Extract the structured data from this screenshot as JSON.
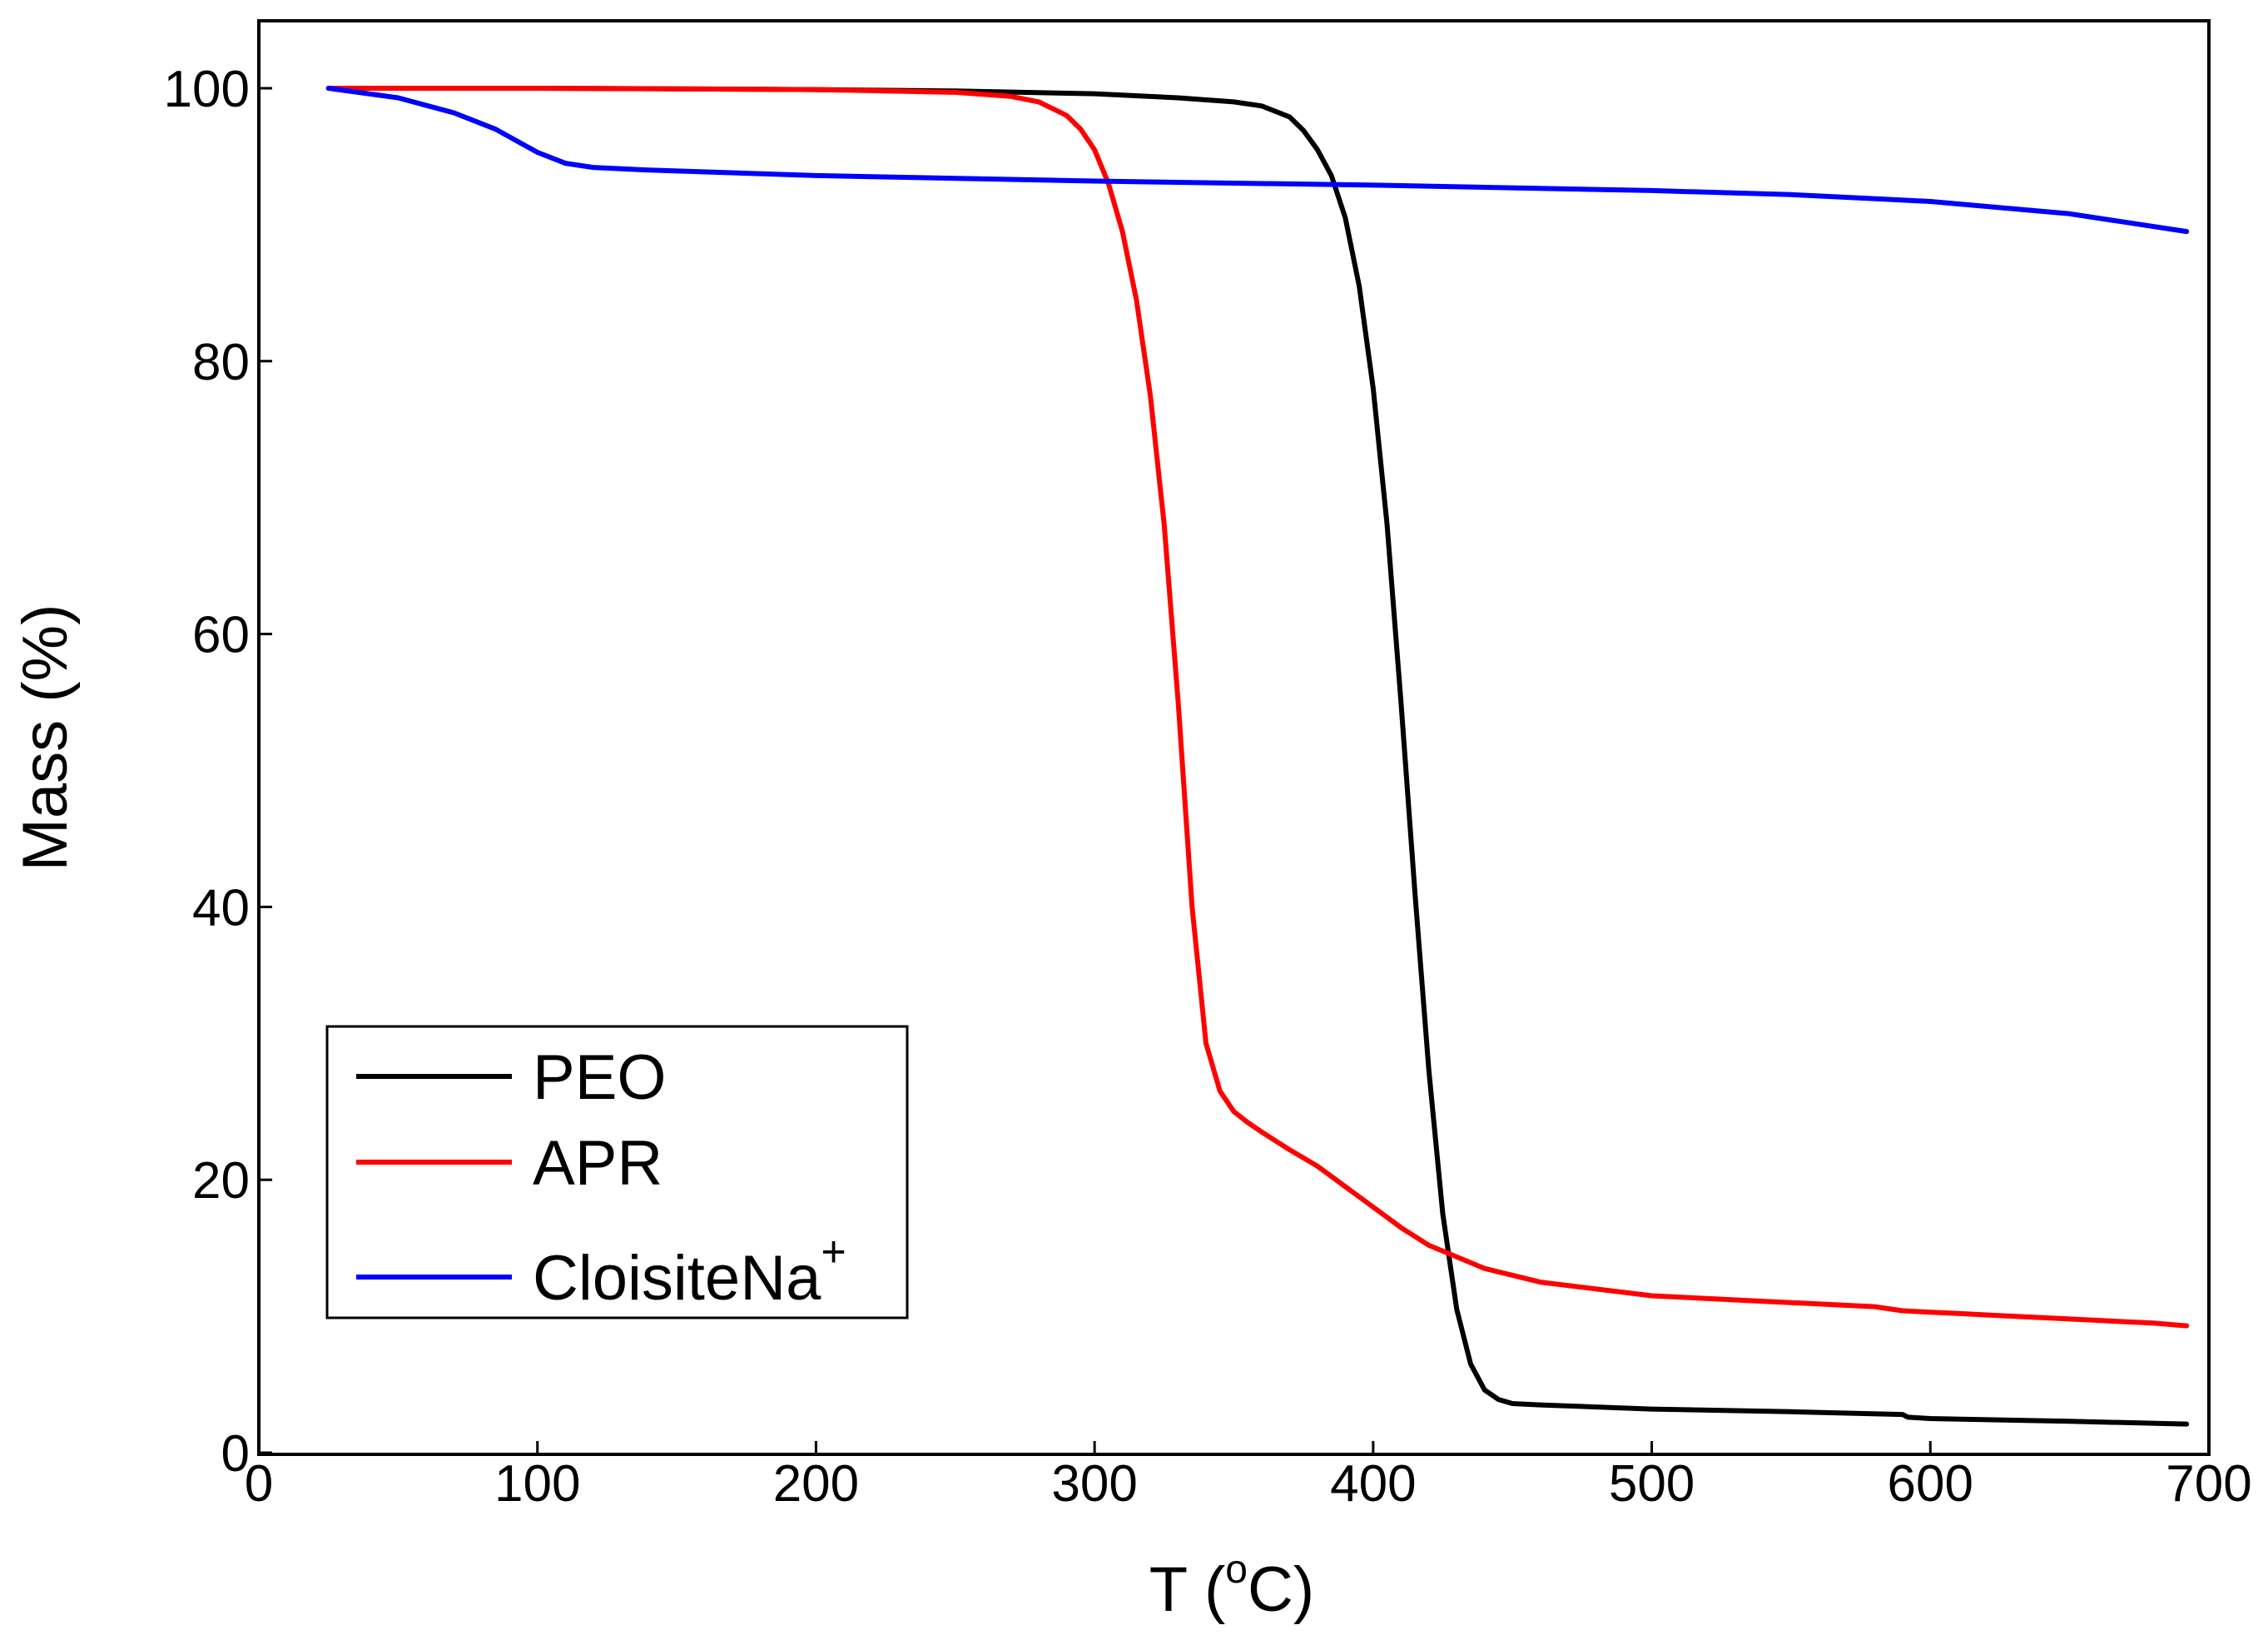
{
  "chart_data": {
    "type": "line",
    "title": "",
    "xlabel": "T (",
    "xlabel_sup": "o",
    "xlabel_tail": "C)",
    "ylabel": "Mass (%)",
    "xlim": [
      0,
      700
    ],
    "ylim": [
      0,
      100
    ],
    "x_ticks": [
      0,
      100,
      200,
      300,
      400,
      500,
      600,
      700
    ],
    "y_ticks": [
      0,
      20,
      40,
      60,
      80,
      100
    ],
    "x_tick_labels": [
      "0",
      "100",
      "200",
      "300",
      "400",
      "500",
      "600",
      "700"
    ],
    "y_tick_labels": [
      "0",
      "20",
      "40",
      "60",
      "80",
      "100"
    ],
    "grid": false,
    "legend_position": "bottom-left",
    "series": [
      {
        "name": "PEO",
        "name_sup": "",
        "color": "#000000",
        "x": [
          25,
          100,
          200,
          250,
          300,
          330,
          350,
          360,
          370,
          375,
          380,
          385,
          390,
          395,
          400,
          405,
          410,
          415,
          420,
          425,
          430,
          435,
          440,
          445,
          450,
          460,
          500,
          550,
          590,
          592,
          600,
          650,
          692
        ],
        "y": [
          100,
          100,
          99.9,
          99.8,
          99.6,
          99.3,
          99.0,
          98.7,
          97.9,
          96.9,
          95.5,
          93.6,
          90.5,
          85.5,
          78.0,
          68.0,
          55.0,
          41.0,
          28.0,
          17.5,
          10.5,
          6.5,
          4.6,
          3.9,
          3.6,
          3.5,
          3.2,
          3.0,
          2.8,
          2.6,
          2.5,
          2.3,
          2.1
        ]
      },
      {
        "name": "APR",
        "name_sup": "",
        "color": "#ff0000",
        "x": [
          25,
          100,
          200,
          250,
          270,
          280,
          290,
          295,
          300,
          305,
          310,
          315,
          320,
          325,
          330,
          335,
          340,
          345,
          350,
          355,
          360,
          370,
          380,
          390,
          400,
          410,
          420,
          440,
          460,
          500,
          550,
          580,
          590,
          600,
          610,
          620,
          630,
          640,
          650,
          660,
          670,
          680,
          692
        ],
        "y": [
          100,
          100,
          99.9,
          99.7,
          99.4,
          99.0,
          98.0,
          97.0,
          95.5,
          93.0,
          89.5,
          84.5,
          77.5,
          68.0,
          55.0,
          40.0,
          30.0,
          26.5,
          25.0,
          24.2,
          23.5,
          22.2,
          21.0,
          19.5,
          18.0,
          16.5,
          15.2,
          13.5,
          12.5,
          11.5,
          11.0,
          10.7,
          10.4,
          10.3,
          10.2,
          10.1,
          10.0,
          9.9,
          9.8,
          9.7,
          9.6,
          9.5,
          9.3
        ]
      },
      {
        "name": "CloisiteNa",
        "name_sup": "+",
        "color": "#0000ff",
        "x": [
          25,
          50,
          70,
          85,
          100,
          110,
          120,
          140,
          200,
          300,
          400,
          500,
          550,
          600,
          650,
          692
        ],
        "y": [
          100,
          99.3,
          98.2,
          97.0,
          95.3,
          94.5,
          94.2,
          94.0,
          93.6,
          93.2,
          92.9,
          92.5,
          92.2,
          91.7,
          90.8,
          89.5
        ]
      }
    ]
  }
}
